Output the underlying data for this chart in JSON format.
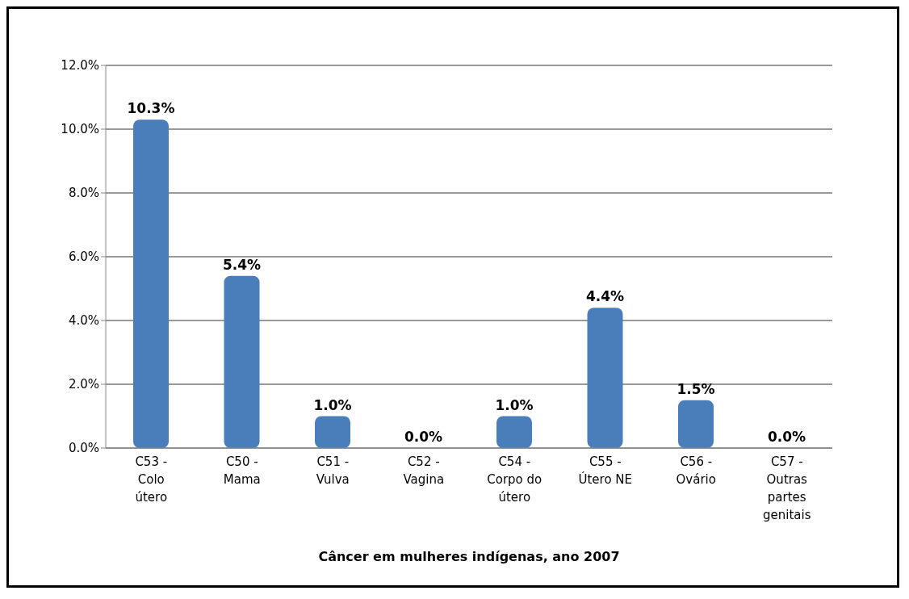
{
  "chart_data": {
    "type": "bar",
    "xlabel": "Câncer em mulheres indígenas, ano 2007",
    "categories": [
      "C53 -\nColo\nútero",
      "C50 -\nMama",
      "C51 -\nVulva",
      "C52 -\nVagina",
      "C54 -\nCorpo do\nútero",
      "C55 -\nÚtero NE",
      "C56 -\nOvário",
      "C57 -\nOutras\npartes\ngenitais"
    ],
    "values": [
      10.3,
      5.4,
      1.0,
      0.0,
      1.0,
      4.4,
      1.5,
      0.0
    ],
    "value_labels": [
      "10.3%",
      "5.4%",
      "1.0%",
      "0.0%",
      "1.0%",
      "4.4%",
      "1.5%",
      "0.0%"
    ],
    "color": "#4a7ebb",
    "ylim": [
      0,
      12
    ],
    "yticks": [
      {
        "value": 0,
        "label": "0.0%"
      },
      {
        "value": 2,
        "label": "2.0%"
      },
      {
        "value": 4,
        "label": "4.0%"
      },
      {
        "value": 6,
        "label": "6.0%"
      },
      {
        "value": 8,
        "label": "8.0%"
      },
      {
        "value": 10,
        "label": "10.0%"
      },
      {
        "value": 12,
        "label": "12.0%"
      }
    ],
    "grid": "y"
  }
}
